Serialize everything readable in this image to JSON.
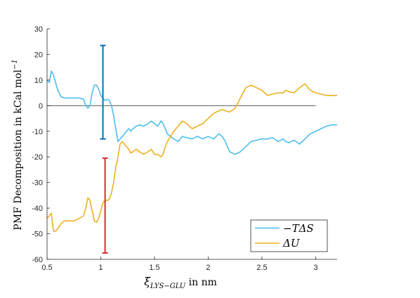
{
  "chart_data": {
    "type": "line",
    "xlabel": "ξ",
    "xlabel_sub": "LYS−GLU",
    "xlabel_suffix": " in nm",
    "ylabel": "PMF Decomposition in kCal mol",
    "ylabel_sup": "−1",
    "xlim": [
      0.5,
      3.2
    ],
    "ylim": [
      -60,
      30
    ],
    "xticks": [
      0.5,
      1,
      1.5,
      2,
      2.5,
      3
    ],
    "yticks": [
      -60,
      -50,
      -40,
      -30,
      -20,
      -10,
      0,
      10,
      20,
      30
    ],
    "grid": false,
    "legend_position": "bottom-right",
    "zero_line": {
      "y": 0,
      "x_range": [
        0.5,
        3.0
      ],
      "color": "#595959"
    },
    "series": [
      {
        "name": "−TΔS",
        "color": "#4DBEEE",
        "x": [
          0.5,
          0.52,
          0.54,
          0.56,
          0.58,
          0.6,
          0.63,
          0.66,
          0.7,
          0.75,
          0.8,
          0.84,
          0.86,
          0.88,
          0.9,
          0.92,
          0.94,
          0.96,
          0.98,
          1.0,
          1.02,
          1.04,
          1.06,
          1.08,
          1.1,
          1.12,
          1.14,
          1.16,
          1.18,
          1.2,
          1.22,
          1.24,
          1.26,
          1.28,
          1.3,
          1.33,
          1.36,
          1.4,
          1.44,
          1.47,
          1.5,
          1.53,
          1.56,
          1.58,
          1.6,
          1.62,
          1.65,
          1.68,
          1.72,
          1.76,
          1.8,
          1.85,
          1.9,
          1.95,
          2.0,
          2.05,
          2.1,
          2.13,
          2.16,
          2.2,
          2.25,
          2.3,
          2.35,
          2.4,
          2.45,
          2.5,
          2.55,
          2.6,
          2.65,
          2.7,
          2.72,
          2.75,
          2.8,
          2.85,
          2.9,
          2.95,
          3.0,
          3.05,
          3.1,
          3.15,
          3.2
        ],
        "y": [
          10,
          9,
          13.5,
          12,
          9,
          6,
          3.5,
          3,
          3,
          3,
          3,
          2.5,
          0,
          -1,
          0,
          5,
          8,
          8,
          6.5,
          4,
          3,
          2,
          2.5,
          2,
          0,
          -4,
          -9,
          -14,
          -13,
          -12,
          -11,
          -10,
          -9,
          -10,
          -9,
          -8,
          -7.5,
          -8,
          -7,
          -6,
          -7,
          -8,
          -6,
          -7,
          -9,
          -11,
          -12,
          -13,
          -14,
          -12,
          -12.5,
          -13,
          -12,
          -13,
          -12,
          -13,
          -11,
          -12,
          -14,
          -18,
          -19,
          -18,
          -16,
          -14,
          -13.5,
          -13,
          -13,
          -12.5,
          -14,
          -13,
          -14,
          -14.5,
          -13.5,
          -15,
          -13,
          -11,
          -10,
          -9,
          -8,
          -7.5,
          -7.5
        ]
      },
      {
        "name": "ΔU",
        "color": "#EDB120",
        "x": [
          0.5,
          0.52,
          0.54,
          0.56,
          0.58,
          0.6,
          0.63,
          0.66,
          0.7,
          0.75,
          0.8,
          0.84,
          0.86,
          0.88,
          0.9,
          0.92,
          0.94,
          0.96,
          0.98,
          1.0,
          1.02,
          1.04,
          1.06,
          1.08,
          1.1,
          1.12,
          1.14,
          1.16,
          1.18,
          1.2,
          1.22,
          1.24,
          1.26,
          1.28,
          1.3,
          1.33,
          1.36,
          1.4,
          1.44,
          1.47,
          1.5,
          1.53,
          1.56,
          1.58,
          1.6,
          1.62,
          1.65,
          1.68,
          1.72,
          1.76,
          1.8,
          1.85,
          1.9,
          1.95,
          2.0,
          2.05,
          2.1,
          2.13,
          2.16,
          2.2,
          2.25,
          2.3,
          2.35,
          2.4,
          2.45,
          2.5,
          2.55,
          2.6,
          2.65,
          2.7,
          2.72,
          2.75,
          2.8,
          2.85,
          2.9,
          2.95,
          3.0,
          3.05,
          3.1,
          3.15,
          3.2
        ],
        "y": [
          -44,
          -43,
          -42,
          -49,
          -49,
          -48,
          -46,
          -45,
          -45,
          -45,
          -44,
          -43,
          -40,
          -36,
          -37,
          -41,
          -45,
          -45.5,
          -44,
          -41,
          -38,
          -37,
          -37,
          -36.5,
          -34,
          -30,
          -24,
          -20,
          -15,
          -14,
          -15,
          -16,
          -17,
          -18.5,
          -18,
          -17,
          -18,
          -19,
          -18,
          -17,
          -19,
          -19,
          -20,
          -19,
          -16,
          -14,
          -12,
          -10,
          -8,
          -6,
          -7,
          -9,
          -8,
          -7,
          -5,
          -3,
          -2,
          -1.5,
          -2,
          -2.5,
          -1,
          3,
          7,
          8,
          7,
          6,
          4,
          4.5,
          5,
          5,
          6,
          5.5,
          5,
          7,
          8.5,
          6,
          5,
          4.5,
          4,
          4,
          4
        ]
      }
    ],
    "error_bars": [
      {
        "x": 1.02,
        "low": -13,
        "high": 23.5,
        "color": "#0072BD"
      },
      {
        "x": 1.04,
        "low": -57.5,
        "high": -20.5,
        "color": "#D92B2B"
      }
    ]
  }
}
